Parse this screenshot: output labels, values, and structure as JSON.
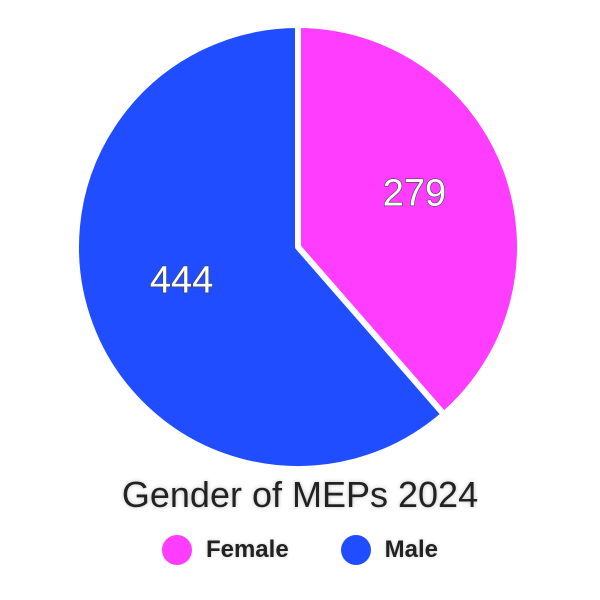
{
  "chart_data": {
    "type": "pie",
    "title": "Gender of MEPs 2024",
    "slices": [
      {
        "label": "Female",
        "value": 279,
        "color": "#ff3dff"
      },
      {
        "label": "Male",
        "value": 444,
        "color": "#1f4dff"
      }
    ],
    "legend": "bottom-center",
    "start": "top",
    "direction": "clockwise"
  }
}
